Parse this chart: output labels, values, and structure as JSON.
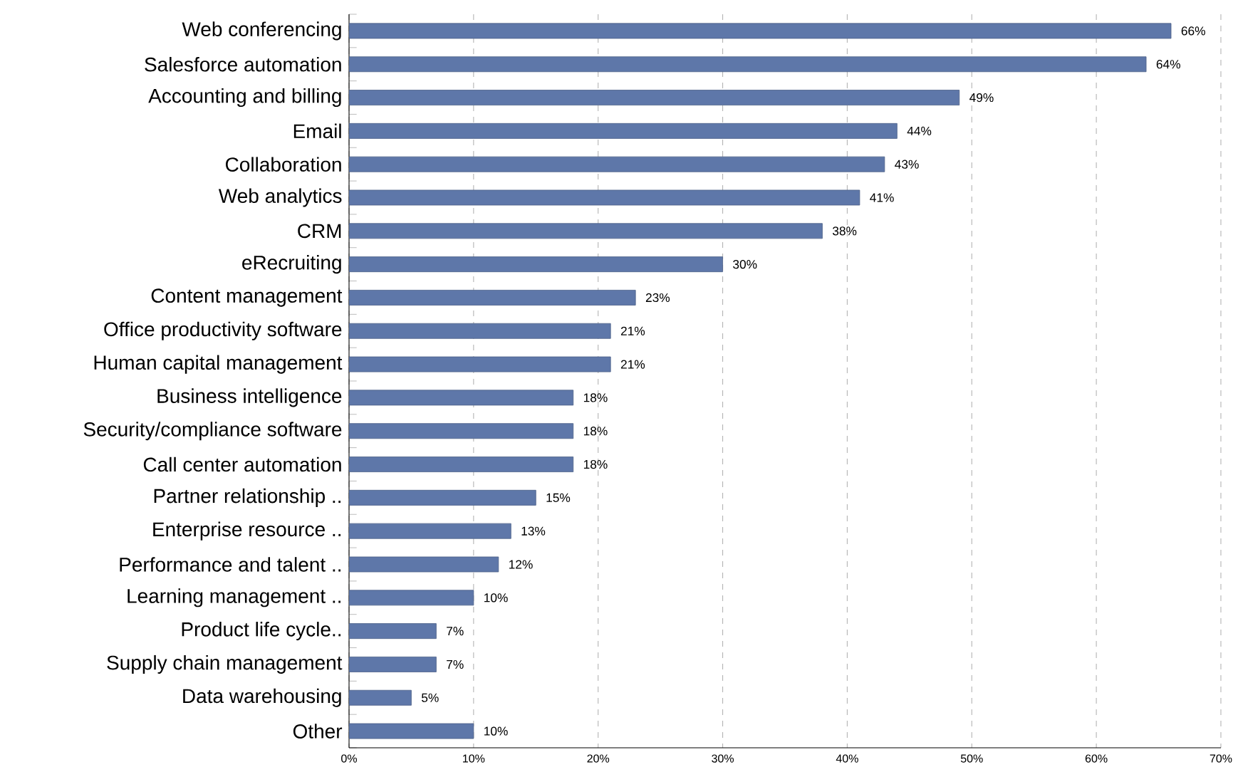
{
  "chart_data": {
    "type": "bar",
    "orientation": "horizontal",
    "categories": [
      "Web conferencing",
      "Salesforce automation",
      "Accounting and billing",
      "Email",
      "Collaboration",
      "Web analytics",
      "CRM",
      "eRecruiting",
      "Content management",
      "Office productivity software",
      "Human capital management",
      "Business intelligence",
      "Security/compliance software",
      "Call center automation",
      "Partner relationship ..",
      "Enterprise resource ..",
      "Performance and talent ..",
      "Learning management ..",
      "Product life cycle..",
      "Supply chain management",
      "Data warehousing",
      "Other"
    ],
    "values": [
      66,
      64,
      49,
      44,
      43,
      41,
      38,
      30,
      23,
      21,
      21,
      18,
      18,
      18,
      15,
      13,
      12,
      10,
      7,
      7,
      5,
      10
    ],
    "value_labels": [
      "66%",
      "64%",
      "49%",
      "44%",
      "43%",
      "41%",
      "38%",
      "30%",
      "23%",
      "21%",
      "21%",
      "18%",
      "18%",
      "18%",
      "15%",
      "13%",
      "12%",
      "10%",
      "7%",
      "7%",
      "5%",
      "10%"
    ],
    "color": "#5e77a9",
    "xlim": [
      0,
      70
    ],
    "xticks": [
      {
        "value": 0,
        "label": "0%"
      },
      {
        "value": 10,
        "label": "10%"
      },
      {
        "value": 20,
        "label": "20%"
      },
      {
        "value": 30,
        "label": "30%"
      },
      {
        "value": 40,
        "label": "40%"
      },
      {
        "value": 50,
        "label": "50%"
      },
      {
        "value": 60,
        "label": "60%"
      },
      {
        "value": 70,
        "label": "70%"
      }
    ],
    "grid": "x"
  }
}
